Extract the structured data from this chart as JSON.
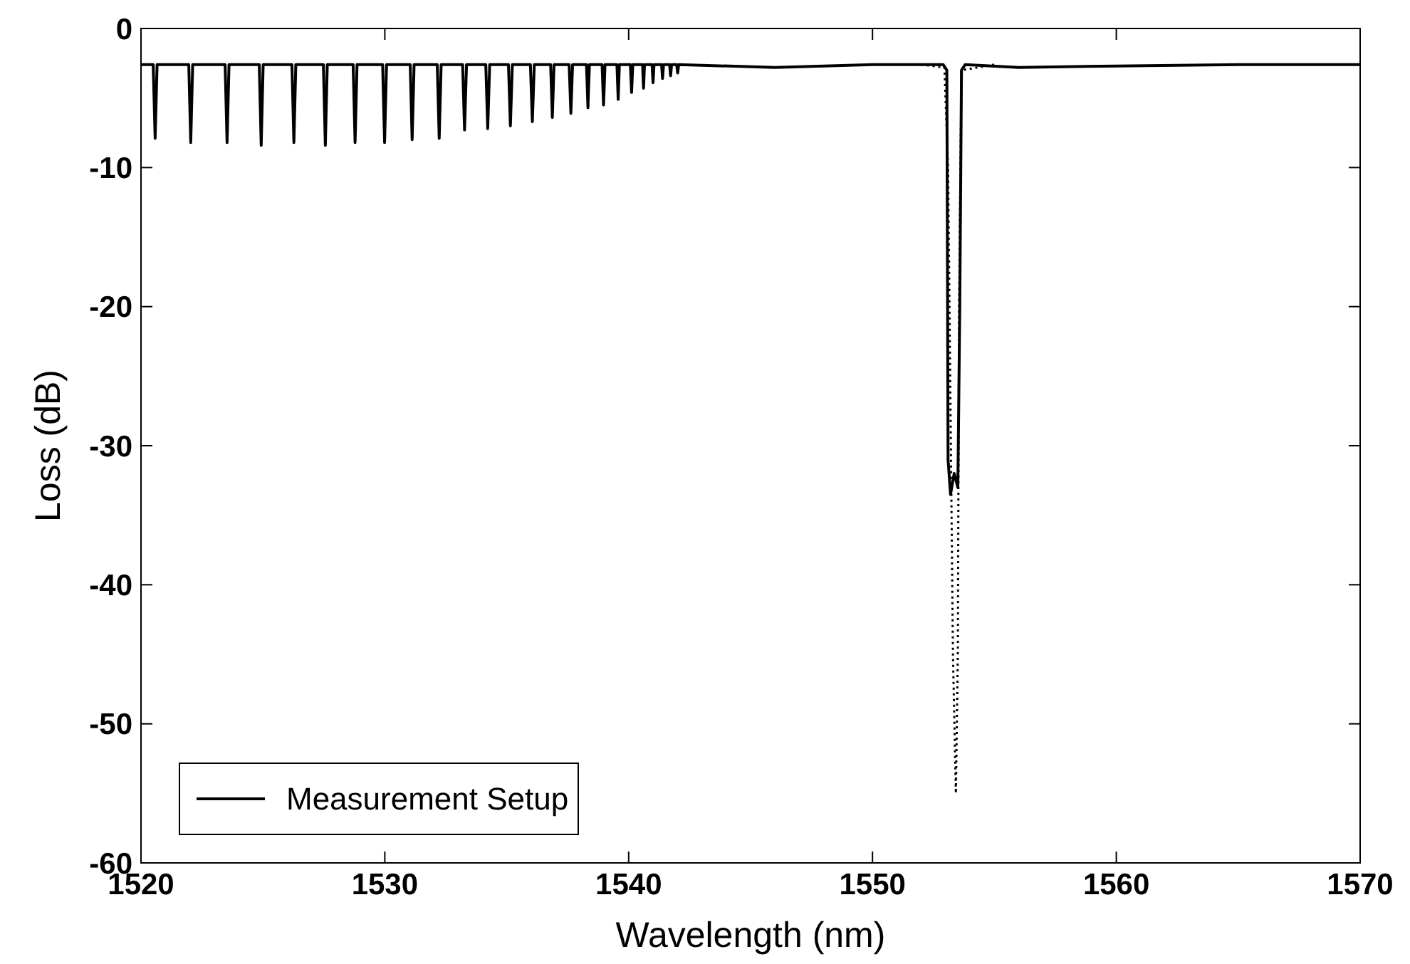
{
  "chart_data": {
    "type": "line",
    "xlabel": "Wavelength (nm)",
    "ylabel": "Loss (dB)",
    "xlim": [
      1520,
      1570
    ],
    "xticks": [
      1520,
      1530,
      1540,
      1550,
      1560,
      1570
    ],
    "ylim": [
      -60,
      0
    ],
    "yticks": [
      0,
      -10,
      -20,
      -30,
      -40,
      -50,
      -60
    ],
    "grid": false,
    "legend": "bottom left",
    "series": [
      {
        "name": "Measurement Setup",
        "color": "#000000",
        "line_style": "solid",
        "x": [
          1520,
          1520.5,
          1520.58,
          1520.66,
          1521.96,
          1522.04,
          1522.12,
          1523.45,
          1523.53,
          1523.61,
          1524.85,
          1524.93,
          1525.01,
          1526.19,
          1526.27,
          1526.35,
          1527.48,
          1527.56,
          1527.64,
          1528.7,
          1528.78,
          1528.86,
          1529.91,
          1529.99,
          1530.07,
          1531.04,
          1531.12,
          1531.2,
          1532.15,
          1532.23,
          1532.31,
          1533.19,
          1533.27,
          1533.35,
          1534.14,
          1534.22,
          1534.3,
          1535.07,
          1535.15,
          1535.23,
          1535.97,
          1536.05,
          1536.13,
          1536.8,
          1536.87,
          1536.94,
          1537.56,
          1537.63,
          1537.7,
          1538.27,
          1538.33,
          1538.39,
          1538.91,
          1538.97,
          1539.03,
          1539.52,
          1539.57,
          1539.62,
          1540.07,
          1540.12,
          1540.17,
          1540.57,
          1540.61,
          1540.65,
          1540.96,
          1541.0,
          1541.04,
          1541.35,
          1541.39,
          1541.43,
          1541.68,
          1541.72,
          1541.76,
          1541.97,
          1542.01,
          1542.05,
          1546,
          1550,
          1552.9,
          1553.05,
          1553.1,
          1553.2,
          1553.35,
          1553.5,
          1553.58,
          1553.65,
          1553.8,
          1556,
          1560,
          1565,
          1570
        ],
        "values": [
          -2.6,
          -2.6,
          -7.9,
          -2.6,
          -2.6,
          -8.2,
          -2.6,
          -2.6,
          -8.2,
          -2.6,
          -2.6,
          -8.4,
          -2.6,
          -2.6,
          -8.2,
          -2.6,
          -2.6,
          -8.4,
          -2.6,
          -2.6,
          -8.2,
          -2.6,
          -2.6,
          -8.2,
          -2.6,
          -2.6,
          -8.0,
          -2.6,
          -2.6,
          -7.9,
          -2.6,
          -2.6,
          -7.3,
          -2.6,
          -2.6,
          -7.2,
          -2.6,
          -2.6,
          -7.0,
          -2.6,
          -2.6,
          -6.7,
          -2.6,
          -2.6,
          -6.4,
          -2.6,
          -2.6,
          -6.1,
          -2.6,
          -2.6,
          -5.7,
          -2.6,
          -2.6,
          -5.5,
          -2.6,
          -2.6,
          -5.1,
          -2.6,
          -2.6,
          -4.6,
          -2.6,
          -2.6,
          -4.3,
          -2.6,
          -2.6,
          -3.9,
          -2.6,
          -2.6,
          -3.6,
          -2.6,
          -2.6,
          -3.4,
          -2.6,
          -2.6,
          -3.2,
          -2.6,
          -2.8,
          -2.6,
          -2.6,
          -3.0,
          -31.0,
          -33.5,
          -32.0,
          -33.0,
          -20.0,
          -3.0,
          -2.6,
          -2.8,
          -2.7,
          -2.6,
          -2.6
        ]
      },
      {
        "color": "#000000",
        "line_style": "dotted",
        "x": [
          1552.0,
          1552.95,
          1553.1,
          1553.3,
          1553.42,
          1553.5,
          1553.55,
          1553.65,
          1555.0
        ],
        "values": [
          -2.6,
          -2.8,
          -10.0,
          -45.0,
          -55.0,
          -45.0,
          -20.0,
          -3.0,
          -2.6
        ]
      }
    ]
  }
}
